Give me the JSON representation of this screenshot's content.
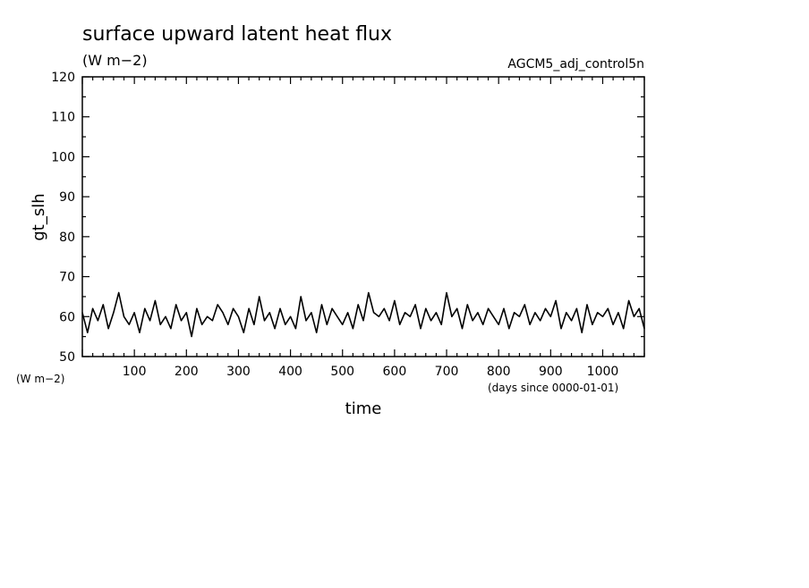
{
  "chart_data": {
    "type": "line",
    "title": "surface upward latent heat flux",
    "subtitle": "(W m−2)",
    "annotation": "AGCM5_adj_control5n",
    "ylabel": "gt_slh",
    "yunits": "(W m−2)",
    "xlabel": "time",
    "xunits": "(days since 0000-01-01)",
    "xlim": [
      0,
      1080
    ],
    "ylim": [
      50,
      120
    ],
    "xticks": [
      100,
      200,
      300,
      400,
      500,
      600,
      700,
      800,
      900,
      1000
    ],
    "yticks": [
      50,
      60,
      70,
      80,
      90,
      100,
      110,
      120
    ],
    "grid": false,
    "series": [
      {
        "x": [
          0,
          10,
          20,
          30,
          40,
          50,
          60,
          70,
          80,
          90,
          100,
          110,
          120,
          130,
          140,
          150,
          160,
          170,
          180,
          190,
          200,
          210,
          220,
          230,
          240,
          250,
          260,
          270,
          280,
          290,
          300,
          310,
          320,
          330,
          340,
          350,
          360,
          370,
          380,
          390,
          400,
          410,
          420,
          430,
          440,
          450,
          460,
          470,
          480,
          490,
          500,
          510,
          520,
          530,
          540,
          550,
          560,
          570,
          580,
          590,
          600,
          610,
          620,
          630,
          640,
          650,
          660,
          670,
          680,
          690,
          700,
          710,
          720,
          730,
          740,
          750,
          760,
          770,
          780,
          790,
          800,
          810,
          820,
          830,
          840,
          850,
          860,
          870,
          880,
          890,
          900,
          910,
          920,
          930,
          940,
          950,
          960,
          970,
          980,
          990,
          1000,
          1010,
          1020,
          1030,
          1040,
          1050,
          1060,
          1070,
          1080
        ],
        "values": [
          61,
          56,
          62,
          59,
          63,
          57,
          61,
          66,
          60,
          58,
          61,
          56,
          62,
          59,
          64,
          58,
          60,
          57,
          63,
          59,
          61,
          55,
          62,
          58,
          60,
          59,
          63,
          61,
          58,
          62,
          60,
          56,
          62,
          58,
          65,
          59,
          61,
          57,
          62,
          58,
          60,
          57,
          65,
          59,
          61,
          56,
          63,
          58,
          62,
          60,
          58,
          61,
          57,
          63,
          59,
          66,
          61,
          60,
          62,
          59,
          64,
          58,
          61,
          60,
          63,
          57,
          62,
          59,
          61,
          58,
          66,
          60,
          62,
          57,
          63,
          59,
          61,
          58,
          62,
          60,
          58,
          62,
          57,
          61,
          60,
          63,
          58,
          61,
          59,
          62,
          60,
          64,
          57,
          61,
          59,
          62,
          56,
          63,
          58,
          61,
          60,
          62,
          58,
          61,
          57,
          64,
          60,
          62,
          57
        ]
      }
    ]
  }
}
